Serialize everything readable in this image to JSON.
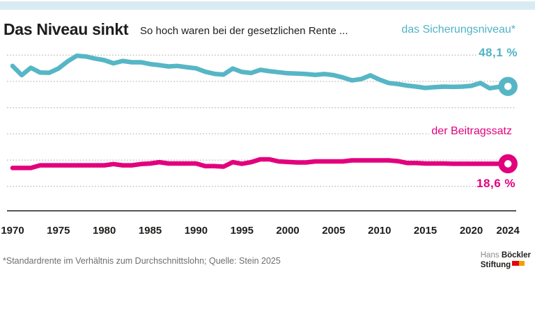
{
  "header": {
    "title": "Das Niveau sinkt",
    "subtitle": "So hoch waren bei der gesetzlichen Rente ...",
    "series1_label": "das Sicherungsniveau*",
    "series1_value": "48,1 %",
    "series2_label": "der Beitragssatz",
    "series2_value": "18,6 %"
  },
  "chart_data": {
    "type": "line",
    "title": "Das Niveau sinkt",
    "subtitle": "So hoch waren bei der gesetzlichen Rente ...",
    "unit": "%",
    "x": [
      1970,
      1971,
      1972,
      1973,
      1974,
      1975,
      1976,
      1977,
      1978,
      1979,
      1980,
      1981,
      1982,
      1983,
      1984,
      1985,
      1986,
      1987,
      1988,
      1989,
      1990,
      1991,
      1992,
      1993,
      1994,
      1995,
      1996,
      1997,
      1998,
      1999,
      2000,
      2001,
      2002,
      2003,
      2004,
      2005,
      2006,
      2007,
      2008,
      2009,
      2010,
      2011,
      2012,
      2013,
      2014,
      2015,
      2016,
      2017,
      2018,
      2019,
      2020,
      2021,
      2022,
      2023,
      2024
    ],
    "series": [
      {
        "name": "das Sicherungsniveau*",
        "color": "#56b6c6",
        "end_label": "48,1 %",
        "end_value": 48.1,
        "values": [
          55.9,
          52.4,
          55.2,
          53.4,
          53.3,
          54.9,
          57.6,
          59.8,
          59.5,
          58.7,
          58.1,
          56.9,
          57.8,
          57.3,
          57.3,
          56.6,
          56.2,
          55.7,
          55.9,
          55.4,
          55.0,
          53.7,
          52.9,
          52.6,
          54.9,
          53.6,
          53.2,
          54.4,
          53.9,
          53.5,
          53.1,
          53.0,
          52.8,
          52.5,
          52.8,
          52.4,
          51.5,
          50.4,
          50.9,
          52.3,
          50.7,
          49.4,
          49.0,
          48.4,
          48.0,
          47.5,
          47.8,
          48.0,
          47.9,
          48.0,
          48.3,
          49.4,
          47.4,
          47.9,
          48.1
        ]
      },
      {
        "name": "der Beitragssatz",
        "color": "#e2007d",
        "end_label": "18,6 %",
        "end_value": 18.6,
        "values": [
          17.0,
          17.0,
          17.0,
          18.0,
          18.0,
          18.0,
          18.0,
          18.0,
          18.0,
          18.0,
          18.0,
          18.5,
          18.0,
          18.0,
          18.5,
          18.7,
          19.2,
          18.7,
          18.7,
          18.7,
          18.7,
          17.7,
          17.7,
          17.5,
          19.2,
          18.6,
          19.2,
          20.3,
          20.3,
          19.5,
          19.3,
          19.1,
          19.1,
          19.5,
          19.5,
          19.5,
          19.5,
          19.9,
          19.9,
          19.9,
          19.9,
          19.9,
          19.6,
          18.9,
          18.9,
          18.7,
          18.7,
          18.7,
          18.6,
          18.6,
          18.6,
          18.6,
          18.6,
          18.6,
          18.6
        ]
      }
    ],
    "xticks": [
      1970,
      1975,
      1980,
      1985,
      1990,
      1995,
      2000,
      2005,
      2010,
      2015,
      2020,
      2024
    ],
    "ylim": [
      0,
      65
    ],
    "gridlines": [
      10,
      20,
      30,
      40,
      50,
      60
    ],
    "grid": "dotted-horizontal",
    "legend_position": "inline-right",
    "end_marker": "ring"
  },
  "footer": {
    "note": "*Standardrente im Verhältnis zum Durchschnittslohn; Quelle: Stein 2025",
    "logo": {
      "name_light": "Hans",
      "name_bold": "Böckler",
      "line2": "Stiftung"
    }
  },
  "colors": {
    "accent_bar": "#d9ebf2",
    "teal": "#56b6c6",
    "magenta": "#e2007d",
    "gridline": "#c7c3bb",
    "axis": "#1d1d1b",
    "note_gray": "#6e6e6d"
  }
}
